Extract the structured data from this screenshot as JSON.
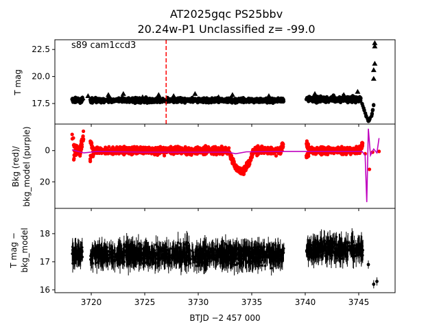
{
  "figure": {
    "title_line1": "AT2025gqc  PS25bbv",
    "title_line2": "20.24w-P1 Unclassified z= -99.0",
    "annotation": "s89 cam1ccd3",
    "xlabel": "BTJD −2 457 000",
    "colors": {
      "points": "#000000",
      "bkg": "#ff0000",
      "model": "#bf00bf",
      "marker_line": "#ff0000"
    }
  },
  "chart_data": [
    {
      "type": "scatter",
      "panel": "top",
      "ylabel": "T mag",
      "xlim": [
        3716.6,
        3748.4
      ],
      "ylim": [
        23.4,
        15.6
      ],
      "y_inverted": true,
      "xticks": [
        3720,
        3725,
        3730,
        3735,
        3740,
        3745
      ],
      "yticks": [
        17.5,
        20.0,
        22.5
      ],
      "ytick_labels": [
        "17.5",
        "20.0",
        "22.5"
      ],
      "vline_x": 3727.0,
      "segments": [
        {
          "x_start": 3718.2,
          "x_end": 3719.2,
          "y_center": 17.8,
          "spread": 0.4
        },
        {
          "x_start": 3719.9,
          "x_end": 3738.0,
          "y_center": 17.8,
          "spread": 0.35
        },
        {
          "x_start": 3740.1,
          "x_end": 3745.2,
          "y_center": 17.9,
          "spread": 0.45
        }
      ],
      "flare": [
        [
          3745.3,
          17.6
        ],
        [
          3745.6,
          16.6
        ],
        [
          3745.9,
          15.9
        ],
        [
          3746.2,
          16.3
        ],
        [
          3746.4,
          17.4
        ]
      ],
      "upper_limits": [
        [
          3719.2,
          18.0
        ],
        [
          3719.7,
          18.2
        ],
        [
          3721.6,
          18.3
        ],
        [
          3723.0,
          18.4
        ],
        [
          3724.8,
          18.1
        ],
        [
          3726.3,
          18.3
        ],
        [
          3727.7,
          18.2
        ],
        [
          3729.7,
          18.4
        ],
        [
          3731.9,
          18.1
        ],
        [
          3733.2,
          18.3
        ],
        [
          3736.6,
          18.2
        ],
        [
          3740.9,
          18.4
        ],
        [
          3742.7,
          18.1
        ],
        [
          3743.6,
          18.3
        ],
        [
          3744.9,
          18.6
        ],
        [
          3746.4,
          19.8
        ],
        [
          3746.4,
          20.6
        ],
        [
          3746.5,
          21.2
        ],
        [
          3746.5,
          22.8
        ],
        [
          3746.5,
          23.1
        ]
      ]
    },
    {
      "type": "scatter",
      "panel": "middle",
      "ylabel_line1": "Bkg (red)/",
      "ylabel_line2": "bkg_model (purple)",
      "xlim": [
        3716.6,
        3748.4
      ],
      "ylim": [
        -17,
        37
      ],
      "yticks": [
        0,
        20
      ],
      "ytick_labels": [
        "0",
        "20"
      ],
      "segments": [
        {
          "x_start": 3718.2,
          "x_end": 3719.3,
          "y_center": 0,
          "spread": 7,
          "edge_rise": 10
        },
        {
          "x_start": 3719.9,
          "x_end": 3738.0,
          "y_center": 0,
          "spread": 4,
          "edge_rise": 5
        },
        {
          "x_start": 3740.1,
          "x_end": 3745.4,
          "y_center": 0,
          "spread": 4,
          "edge_rise": 4
        }
      ],
      "bump": {
        "x_start": 3732.8,
        "x_end": 3735.2,
        "height": 14
      },
      "model_line": [
        [
          3718.2,
          -0.5
        ],
        [
          3719.3,
          1.5
        ],
        [
          3720.5,
          0.5
        ],
        [
          3725.0,
          1.0
        ],
        [
          3732.8,
          1.0
        ],
        [
          3733.5,
          2.0
        ],
        [
          3734.5,
          0.8
        ],
        [
          3738.0,
          0.5
        ],
        [
          3740.1,
          0.5
        ],
        [
          3745.3,
          0.5
        ],
        [
          3745.6,
          3.0
        ],
        [
          3745.75,
          33.0
        ],
        [
          3745.9,
          -14.0
        ],
        [
          3746.1,
          3.0
        ],
        [
          3746.4,
          -1.0
        ],
        [
          3746.7,
          1.5
        ],
        [
          3746.9,
          -8.0
        ]
      ]
    },
    {
      "type": "scatter",
      "panel": "bottom",
      "ylabel_line1": "T mag −",
      "ylabel_line2": "bkg_model",
      "xlim": [
        3716.6,
        3748.4
      ],
      "ylim": [
        18.9,
        15.9
      ],
      "y_inverted": true,
      "yticks": [
        16,
        17,
        18
      ],
      "ytick_labels": [
        "16",
        "17",
        "18"
      ],
      "segments": [
        {
          "x_start": 3718.2,
          "x_end": 3719.2,
          "y_center": 17.3,
          "spread": 0.5
        },
        {
          "x_start": 3719.9,
          "x_end": 3738.0,
          "y_center": 17.25,
          "spread": 0.55
        },
        {
          "x_start": 3740.1,
          "x_end": 3745.4,
          "y_center": 17.45,
          "spread": 0.55
        }
      ],
      "outliers": [
        [
          3745.9,
          16.9
        ],
        [
          3746.4,
          16.2
        ],
        [
          3746.7,
          16.3
        ]
      ]
    }
  ]
}
